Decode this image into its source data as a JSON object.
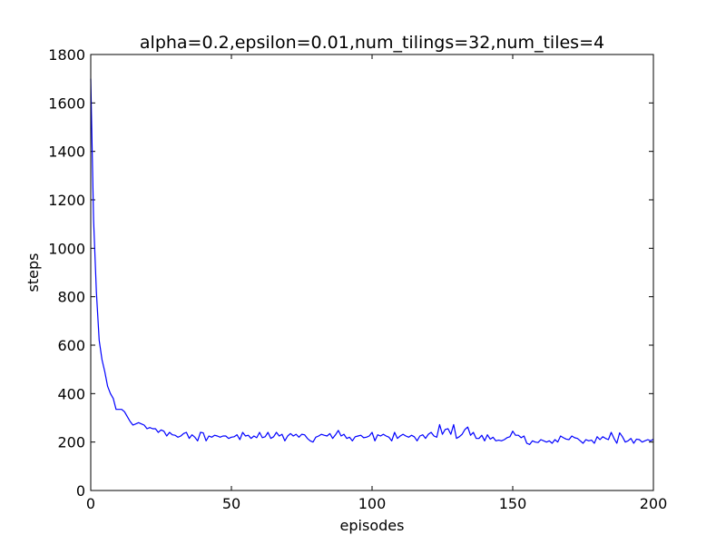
{
  "chart_data": {
    "type": "line",
    "title": "alpha=0.2,epsilon=0.01,num_tilings=32,num_tiles=4",
    "xlabel": "episodes",
    "ylabel": "steps",
    "xlim": [
      0,
      200
    ],
    "ylim": [
      0,
      1800
    ],
    "xticks": [
      0,
      50,
      100,
      150,
      200
    ],
    "yticks": [
      0,
      200,
      400,
      600,
      800,
      1000,
      1200,
      1400,
      1600,
      1800
    ],
    "grid": false,
    "series": [
      {
        "color": "#0000ff",
        "x": [
          0,
          1,
          2,
          3,
          4,
          5,
          6,
          7,
          8,
          9,
          10,
          11,
          12,
          13,
          14,
          15,
          16,
          17,
          18,
          19,
          20,
          21,
          22,
          23,
          24,
          25,
          26,
          27,
          28,
          29,
          30,
          31,
          32,
          33,
          34,
          35,
          36,
          37,
          38,
          39,
          40,
          41,
          42,
          43,
          44,
          45,
          46,
          47,
          48,
          49,
          50,
          51,
          52,
          53,
          54,
          55,
          56,
          57,
          58,
          59,
          60,
          61,
          62,
          63,
          64,
          65,
          66,
          67,
          68,
          69,
          70,
          71,
          72,
          73,
          74,
          75,
          76,
          77,
          78,
          79,
          80,
          81,
          82,
          83,
          84,
          85,
          86,
          87,
          88,
          89,
          90,
          91,
          92,
          93,
          94,
          95,
          96,
          97,
          98,
          99,
          100,
          101,
          102,
          103,
          104,
          105,
          106,
          107,
          108,
          109,
          110,
          111,
          112,
          113,
          114,
          115,
          116,
          117,
          118,
          119,
          120,
          121,
          122,
          123,
          124,
          125,
          126,
          127,
          128,
          129,
          130,
          131,
          132,
          133,
          134,
          135,
          136,
          137,
          138,
          139,
          140,
          141,
          142,
          143,
          144,
          145,
          146,
          147,
          148,
          149,
          150,
          151,
          152,
          153,
          154,
          155,
          156,
          157,
          158,
          159,
          160,
          161,
          162,
          163,
          164,
          165,
          166,
          167,
          168,
          169,
          170,
          171,
          172,
          173,
          174,
          175,
          176,
          177,
          178,
          179,
          180,
          181,
          182,
          183,
          184,
          185,
          186,
          187,
          188,
          189,
          190,
          191,
          192,
          193,
          194,
          195,
          196,
          197,
          198,
          199,
          200
        ],
        "values": [
          1700,
          1120,
          820,
          620,
          540,
          490,
          430,
          400,
          380,
          335,
          335,
          335,
          325,
          305,
          285,
          270,
          275,
          280,
          275,
          270,
          255,
          260,
          255,
          255,
          240,
          250,
          245,
          225,
          240,
          230,
          228,
          220,
          225,
          235,
          240,
          215,
          230,
          220,
          205,
          240,
          238,
          205,
          225,
          220,
          228,
          225,
          220,
          225,
          225,
          215,
          220,
          222,
          230,
          210,
          240,
          225,
          228,
          215,
          225,
          218,
          240,
          218,
          222,
          240,
          215,
          222,
          240,
          225,
          232,
          205,
          225,
          235,
          225,
          232,
          220,
          232,
          230,
          215,
          205,
          200,
          220,
          225,
          232,
          228,
          225,
          235,
          215,
          230,
          248,
          225,
          232,
          215,
          220,
          205,
          222,
          225,
          228,
          218,
          220,
          225,
          240,
          205,
          230,
          225,
          232,
          225,
          220,
          205,
          240,
          215,
          225,
          232,
          225,
          220,
          228,
          222,
          205,
          225,
          230,
          215,
          232,
          240,
          225,
          220,
          272,
          232,
          252,
          255,
          232,
          272,
          215,
          222,
          232,
          252,
          262,
          228,
          240,
          215,
          215,
          228,
          205,
          230,
          212,
          220,
          205,
          208,
          205,
          210,
          218,
          222,
          245,
          228,
          228,
          218,
          225,
          195,
          190,
          205,
          200,
          198,
          210,
          205,
          200,
          205,
          195,
          210,
          200,
          225,
          218,
          212,
          210,
          225,
          218,
          215,
          205,
          195,
          210,
          205,
          208,
          195,
          222,
          210,
          222,
          215,
          210,
          240,
          215,
          195,
          238,
          222,
          200,
          205,
          215,
          195,
          212,
          210,
          200,
          205,
          210,
          205,
          212
        ]
      }
    ]
  }
}
